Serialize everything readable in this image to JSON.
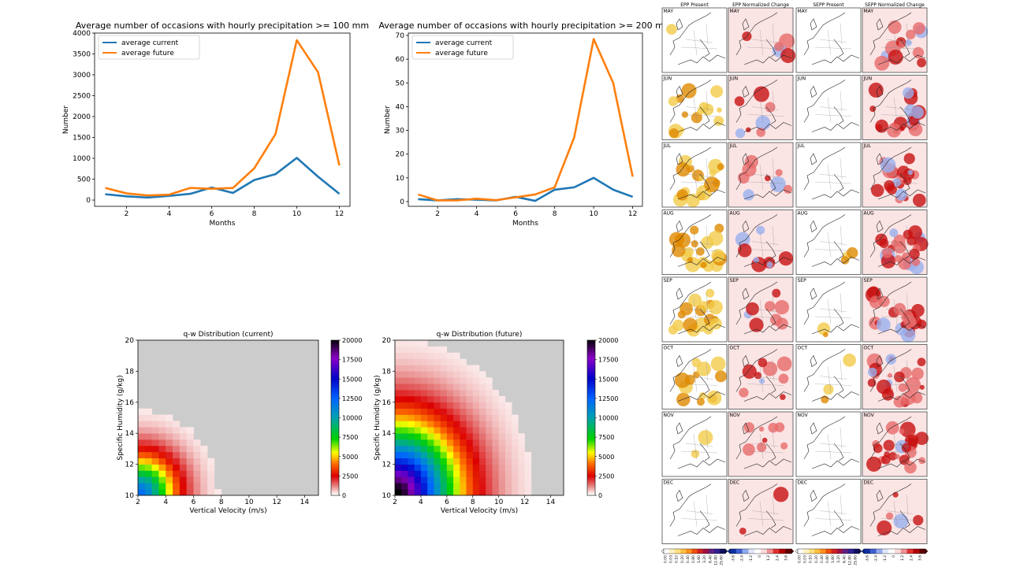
{
  "colors": {
    "current": "#1f77b4",
    "future": "#ff7f0e",
    "heatmap_background": "#cccccc",
    "map_positive": "#d7191c",
    "map_negative": "#4b6cd0",
    "map_present": "#e6a000"
  },
  "chart_data": [
    {
      "type": "line",
      "title": "Average number of occasions with hourly precipitation >= 100 mm",
      "xlabel": "Months",
      "ylabel": "Number",
      "xlim": [
        0.5,
        12.5
      ],
      "ylim": [
        -150,
        4000
      ],
      "xticks": [
        2,
        4,
        6,
        8,
        10,
        12
      ],
      "yticks": [
        0,
        500,
        1000,
        1500,
        2000,
        2500,
        3000,
        3500,
        4000
      ],
      "x": [
        1,
        2,
        3,
        4,
        5,
        6,
        7,
        8,
        9,
        10,
        11,
        12
      ],
      "series": [
        {
          "name": "average current",
          "values": [
            140,
            90,
            60,
            100,
            150,
            300,
            170,
            480,
            620,
            1010,
            560,
            150
          ]
        },
        {
          "name": "average future",
          "values": [
            290,
            160,
            110,
            130,
            290,
            270,
            290,
            760,
            1580,
            3830,
            3060,
            830
          ]
        }
      ],
      "legend": "top-left"
    },
    {
      "type": "line",
      "title": "Average number of occasions with hourly precipitation >= 200 mm",
      "xlabel": "Months",
      "ylabel": "Number",
      "xlim": [
        0.5,
        12.5
      ],
      "ylim": [
        -2,
        71
      ],
      "xticks": [
        2,
        4,
        6,
        8,
        10,
        12
      ],
      "yticks": [
        0,
        10,
        20,
        30,
        40,
        50,
        60,
        70
      ],
      "x": [
        1,
        2,
        3,
        4,
        5,
        6,
        7,
        8,
        9,
        10,
        11,
        12
      ],
      "series": [
        {
          "name": "average current",
          "values": [
            1,
            0.5,
            1,
            0.8,
            0.5,
            2,
            0.3,
            5,
            6,
            10,
            5,
            2
          ]
        },
        {
          "name": "average future",
          "values": [
            3,
            0.5,
            0.5,
            1.2,
            0.6,
            1.8,
            3,
            6,
            27,
            68.5,
            50,
            10.5
          ]
        }
      ],
      "legend": "top-left"
    },
    {
      "type": "heatmap",
      "title": "q-w Distribution (current)",
      "xlabel": "Vertical Velocity (m/s)",
      "ylabel": "Specific Humidity (g/kg)",
      "xlim": [
        2,
        15
      ],
      "ylim": [
        10,
        20
      ],
      "xticks": [
        2,
        4,
        6,
        8,
        10,
        12,
        14
      ],
      "yticks": [
        10,
        12,
        14,
        16,
        18,
        20
      ],
      "colorbar": {
        "min": 0,
        "max": 20000,
        "ticks": [
          0,
          2500,
          5000,
          7500,
          10000,
          12500,
          15000,
          17500,
          20000
        ]
      },
      "peak_count": 12000,
      "extent": 6.0
    },
    {
      "type": "heatmap",
      "title": "q-w Distribution (future)",
      "xlabel": "Vertical Velocity (m/s)",
      "ylabel": "Specific Humidity (g/kg)",
      "xlim": [
        2,
        15
      ],
      "ylim": [
        10,
        20
      ],
      "xticks": [
        2,
        4,
        6,
        8,
        10,
        12,
        14
      ],
      "yticks": [
        10,
        12,
        14,
        16,
        18,
        20
      ],
      "colorbar": {
        "min": 0,
        "max": 20000,
        "ticks": [
          0,
          2500,
          5000,
          7500,
          10000,
          12500,
          15000,
          17500,
          20000
        ]
      },
      "peak_count": 20000,
      "extent": 10.5
    }
  ],
  "map_grid": {
    "columns": [
      "EPP Present",
      "EPP Normalized Change",
      "SEPP Present",
      "SEPP Normalized Change"
    ],
    "months": [
      "MAY",
      "JUN",
      "JUL",
      "AUG",
      "SEP",
      "OCT",
      "NOV",
      "DEC"
    ],
    "colorbars": [
      {
        "ticks": [
          "0.00",
          "0.03",
          "0.10",
          "0.20",
          "0.40",
          "0.80",
          "1.60",
          "3.20",
          "6.40",
          "12.80",
          "25.60"
        ]
      },
      {
        "ticks": [
          "-3.6",
          "-2.4",
          "-1.2",
          "0",
          "1.2",
          "2.4",
          "3.6"
        ]
      },
      {
        "ticks": [
          "0.00",
          "0.03",
          "0.10",
          "0.20",
          "0.40",
          "0.80",
          "1.60",
          "3.20",
          "6.40",
          "12.80",
          "25.60"
        ]
      },
      {
        "ticks": [
          "-3.6",
          "-2.4",
          "-1.2",
          "0",
          "1.2",
          "2.4",
          "3.6"
        ]
      }
    ]
  }
}
